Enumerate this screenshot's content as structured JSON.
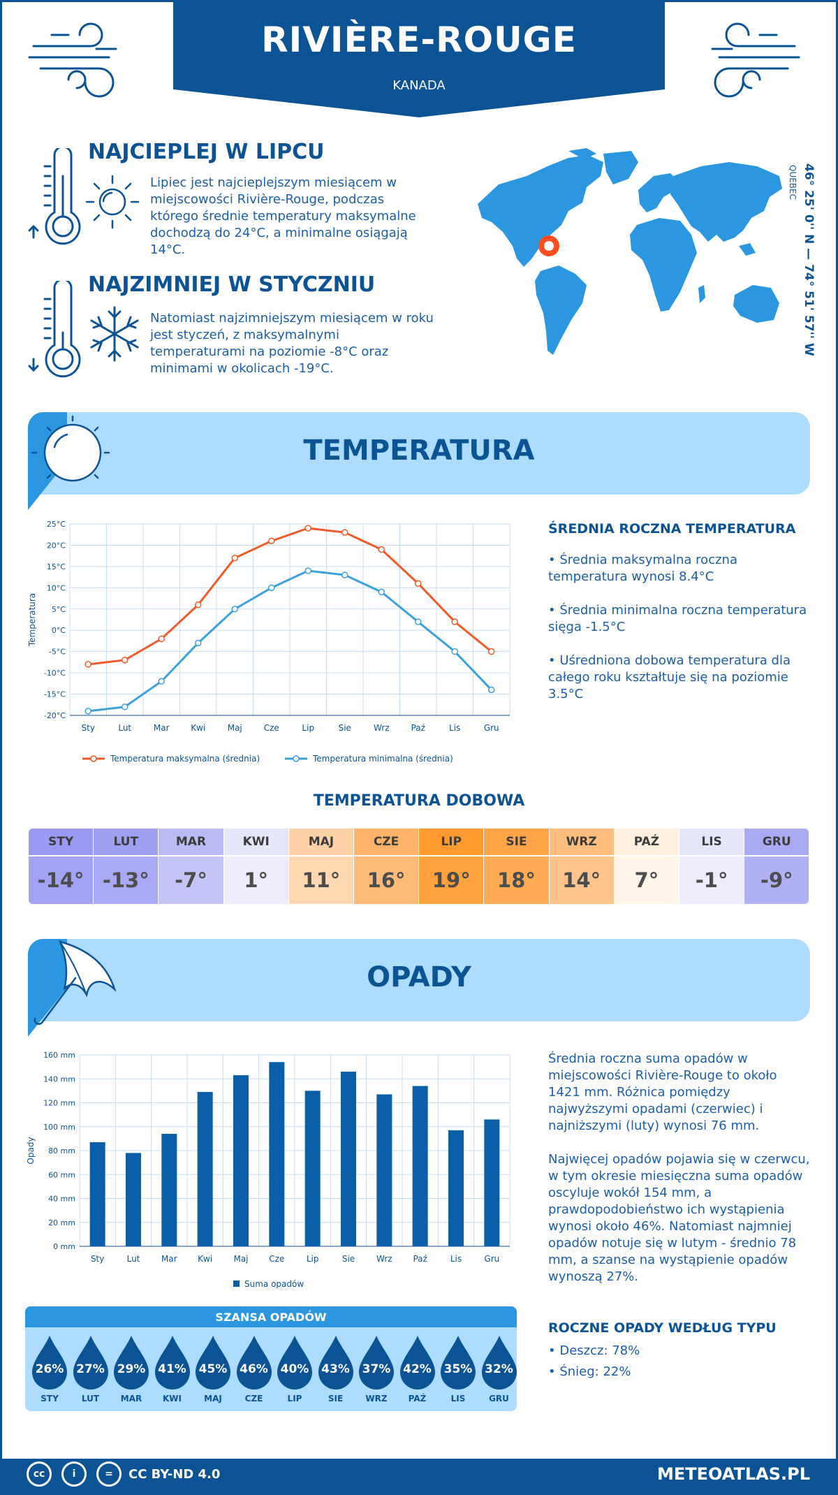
{
  "header": {
    "city": "RIVIÈRE-ROUGE",
    "country": "KANADA",
    "region": "QUEBEC",
    "coordinates": "46° 25' 0'' N — 74° 51' 57'' W"
  },
  "warmest": {
    "title": "NAJCIEPLEJ W LIPCU",
    "text": "Lipiec jest najcieplejszym miesiącem w miejscowości Rivière-Rouge, podczas którego średnie temperatury maksymalne dochodzą do 24°C, a minimalne osiągają 14°C."
  },
  "coldest": {
    "title": "NAJZIMNIEJ W STYCZNIU",
    "text": "Natomiast najzimniejszym miesiącem w roku jest styczeń, z maksymalnymi temperaturami na poziomie -8°C oraz minimami w okolicach -19°C."
  },
  "temperature_section": {
    "title": "TEMPERATURA",
    "stats_title": "ŚREDNIA ROCZNA TEMPERATURA",
    "stat1": "• Średnia maksymalna roczna temperatura wynosi 8.4°C",
    "stat2": "• Średnia minimalna roczna temperatura sięga -1.5°C",
    "stat3": "• Uśredniona dobowa temperatura dla całego roku kształtuje się na poziomie 3.5°C"
  },
  "daily_temp": {
    "title": "TEMPERATURA DOBOWA",
    "months": [
      "STY",
      "LUT",
      "MAR",
      "KWI",
      "MAJ",
      "CZE",
      "LIP",
      "SIE",
      "WRZ",
      "PAŹ",
      "LIS",
      "GRU"
    ],
    "values": [
      "-14°",
      "-13°",
      "-7°",
      "1°",
      "11°",
      "16°",
      "19°",
      "18°",
      "14°",
      "7°",
      "-1°",
      "-9°"
    ],
    "header_colors": [
      "#9a9af2",
      "#a0a0f2",
      "#bcbcf5",
      "#e6e6fb",
      "#ffd1a6",
      "#ffb36b",
      "#ff9a2e",
      "#ffa447",
      "#ffbd80",
      "#fff0e0",
      "#e6e6fb",
      "#aaaaf3"
    ],
    "value_colors": [
      "#a3a3f5",
      "#a8a8f5",
      "#c4c4f7",
      "#ececfc",
      "#ffd7b0",
      "#ffba78",
      "#ffa23d",
      "#ffac55",
      "#ffc38c",
      "#fff4e8",
      "#ececfc",
      "#b1b1f5"
    ]
  },
  "precip_section": {
    "title": "OPADY",
    "text1": "Średnia roczna suma opadów w miejscowości Rivière-Rouge to około 1421 mm. Różnica pomiędzy najwyższymi opadami (czerwiec) i najniższymi (luty) wynosi 76 mm.",
    "text2": "Najwięcej opadów pojawia się w czerwcu, w tym okresie miesięczna suma opadów oscyluje wokół 154 mm, a prawdopodobieństwo ich wystąpienia wynosi około 46%. Natomiast najmniej opadów notuje się w lutym - średnio 78 mm, a szanse na wystąpienie opadów wynoszą 27%.",
    "type_title": "ROCZNE OPADY WEDŁUG TYPU",
    "type1": "• Deszcz: 78%",
    "type2": "• Śnieg: 22%"
  },
  "chance": {
    "title": "SZANSA OPADÓW",
    "months": [
      "STY",
      "LUT",
      "MAR",
      "KWI",
      "MAJ",
      "CZE",
      "LIP",
      "SIE",
      "WRZ",
      "PAŹ",
      "LIS",
      "GRU"
    ],
    "values": [
      "26%",
      "27%",
      "29%",
      "41%",
      "45%",
      "46%",
      "40%",
      "43%",
      "37%",
      "42%",
      "35%",
      "32%"
    ]
  },
  "footer": {
    "license": "CC BY-ND 4.0",
    "site": "METEOATLAS.PL"
  },
  "chart_data": [
    {
      "type": "line",
      "categories": [
        "Sty",
        "Lut",
        "Mar",
        "Kwi",
        "Maj",
        "Cze",
        "Lip",
        "Sie",
        "Wrz",
        "Paź",
        "Lis",
        "Gru"
      ],
      "ylabel": "Temperatura",
      "ylim": [
        -20,
        25
      ],
      "yticks": [
        "25°C",
        "20°C",
        "15°C",
        "10°C",
        "5°C",
        "0°C",
        "-5°C",
        "-10°C",
        "-15°C",
        "-20°C"
      ],
      "grid": true,
      "legend_position": "bottom",
      "series": [
        {
          "name": "Temperatura maksymalna (średnia)",
          "color": "#f05a28",
          "values": [
            -8,
            -7,
            -2,
            6,
            17,
            21,
            24,
            23,
            19,
            11,
            2,
            -5
          ]
        },
        {
          "name": "Temperatura minimalna (średnia)",
          "color": "#3ca0dc",
          "values": [
            -19,
            -18,
            -12,
            -3,
            5,
            10,
            14,
            13,
            9,
            2,
            -5,
            -14
          ]
        }
      ]
    },
    {
      "type": "bar",
      "categories": [
        "Sty",
        "Lut",
        "Mar",
        "Kwi",
        "Maj",
        "Cze",
        "Lip",
        "Sie",
        "Wrz",
        "Paź",
        "Lis",
        "Gru"
      ],
      "ylabel": "Opady",
      "ylim": [
        0,
        160
      ],
      "yticks": [
        "160 mm",
        "140 mm",
        "120 mm",
        "100 mm",
        "80 mm",
        "60 mm",
        "40 mm",
        "20 mm",
        "0 mm"
      ],
      "grid": true,
      "legend_position": "bottom",
      "series": [
        {
          "name": "Suma opadów",
          "color": "#0b5ea8",
          "values": [
            87,
            78,
            94,
            129,
            143,
            154,
            130,
            146,
            127,
            134,
            97,
            106
          ]
        }
      ]
    }
  ]
}
